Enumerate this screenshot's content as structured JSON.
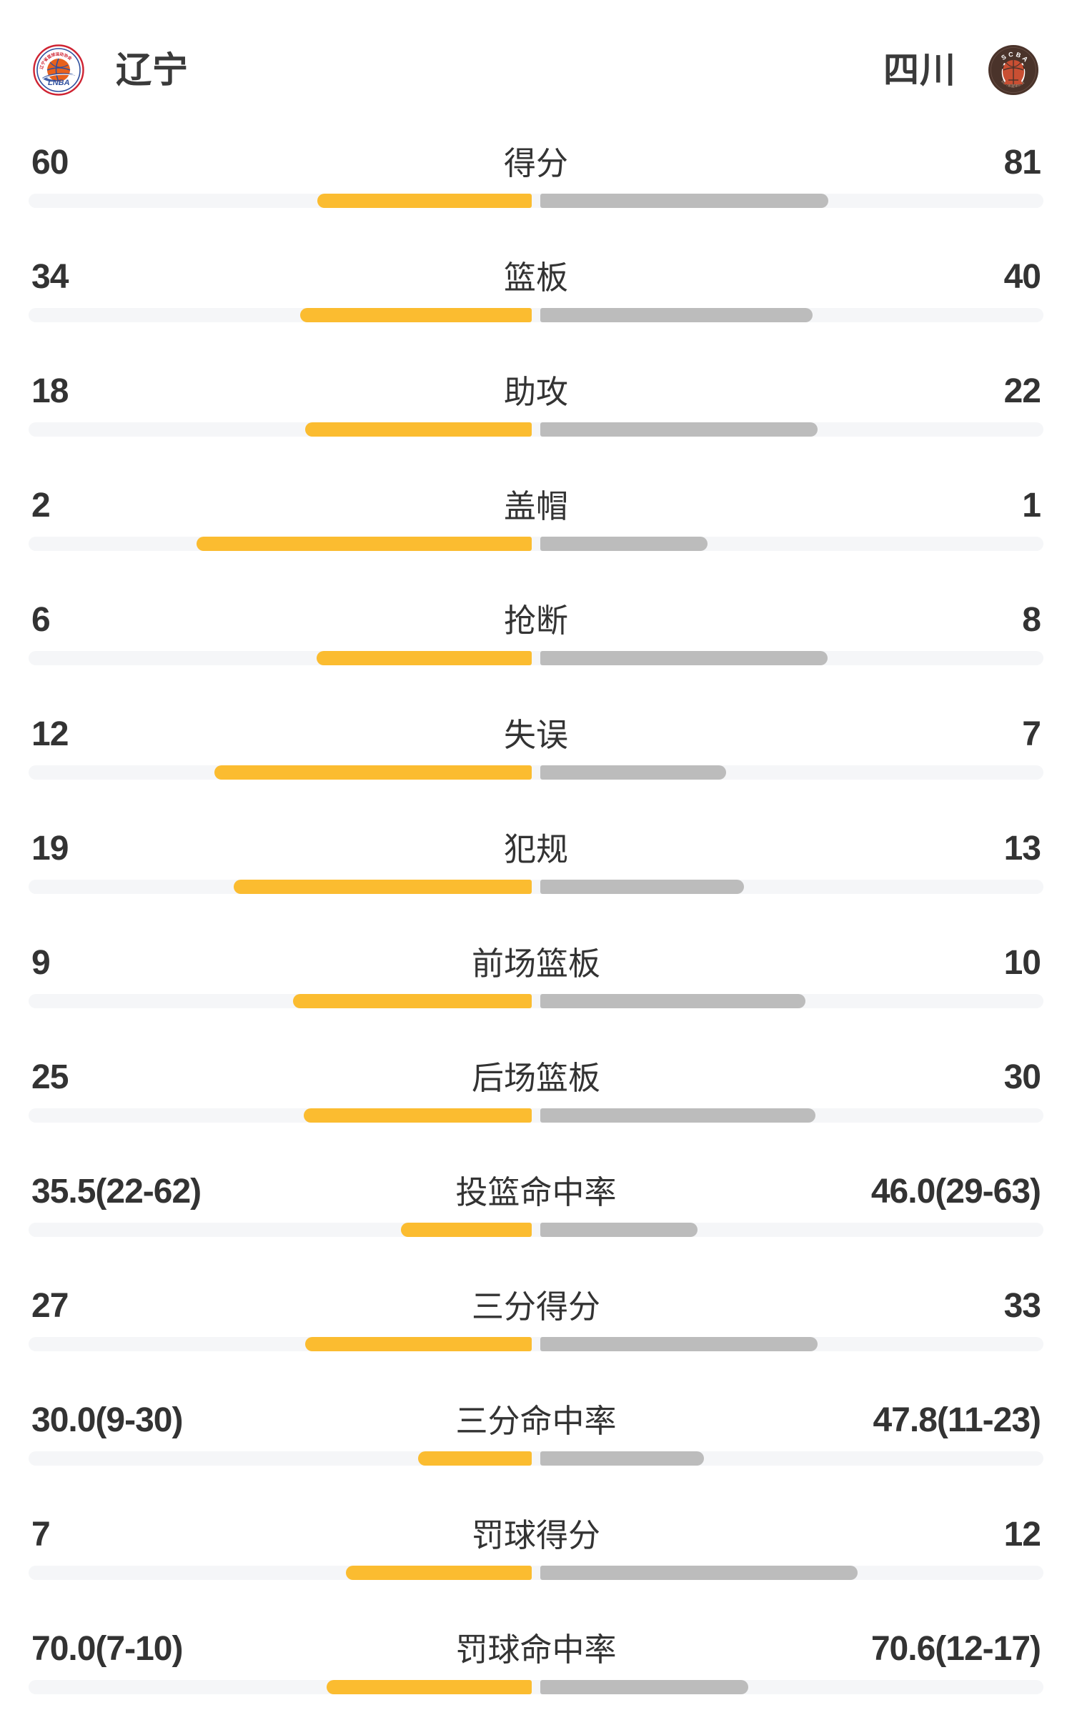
{
  "header": {
    "home": {
      "name": "辽宁",
      "logo_icon": "lnba-team-badge",
      "logo_text": "LNBA",
      "logo_arc_text": "辽宁省篮球运动协会"
    },
    "away": {
      "name": "四川",
      "logo_icon": "scba-team-badge",
      "logo_text": "SCBA",
      "logo_arc_text": "四川省篮球协会"
    }
  },
  "colors": {
    "home_bar": "#fbbc30",
    "away_bar": "#bcbcbc",
    "bar_track": "#f5f6f8",
    "text_primary": "#333333",
    "background": "#ffffff",
    "lnba_red": "#cf2332",
    "lnba_blue": "#2e4f9e",
    "lnba_orange": "#e8611c",
    "scba_brown": "#4a332a",
    "scba_red": "#c94f33"
  },
  "chart_data": {
    "type": "bar",
    "variant": "paired-horizontal-team-comparison",
    "title": "",
    "teams": [
      "辽宁",
      "四川"
    ],
    "legend_position": "none",
    "grid": false,
    "bar_rule": "home bar grows leftward and away bar grows rightward from a 12px center gap; *_bar_pct is bar length as percent of full track width",
    "rows": [
      {
        "label": "得分",
        "home": "60",
        "away": "81",
        "home_num": 60,
        "away_num": 81,
        "home_bar_pct": 21.1,
        "away_bar_pct": 28.4
      },
      {
        "label": "篮板",
        "home": "34",
        "away": "40",
        "home_num": 34,
        "away_num": 40,
        "home_bar_pct": 22.8,
        "away_bar_pct": 26.8
      },
      {
        "label": "助攻",
        "home": "18",
        "away": "22",
        "home_num": 18,
        "away_num": 22,
        "home_bar_pct": 22.3,
        "away_bar_pct": 27.3
      },
      {
        "label": "盖帽",
        "home": "2",
        "away": "1",
        "home_num": 2,
        "away_num": 1,
        "home_bar_pct": 33.0,
        "away_bar_pct": 16.5
      },
      {
        "label": "抢断",
        "home": "6",
        "away": "8",
        "home_num": 6,
        "away_num": 8,
        "home_bar_pct": 21.2,
        "away_bar_pct": 28.3
      },
      {
        "label": "失误",
        "home": "12",
        "away": "7",
        "home_num": 12,
        "away_num": 7,
        "home_bar_pct": 31.3,
        "away_bar_pct": 18.3
      },
      {
        "label": "犯规",
        "home": "19",
        "away": "13",
        "home_num": 19,
        "away_num": 13,
        "home_bar_pct": 29.4,
        "away_bar_pct": 20.1
      },
      {
        "label": "前场篮板",
        "home": "9",
        "away": "10",
        "home_num": 9,
        "away_num": 10,
        "home_bar_pct": 23.5,
        "away_bar_pct": 26.1
      },
      {
        "label": "后场篮板",
        "home": "25",
        "away": "30",
        "home_num": 25,
        "away_num": 30,
        "home_bar_pct": 22.5,
        "away_bar_pct": 27.1
      },
      {
        "label": "投篮命中率",
        "home": "35.5(22-62)",
        "away": "46.0(29-63)",
        "home_num": 35.5,
        "away_num": 46.0,
        "home_made": 22,
        "home_att": 62,
        "away_made": 29,
        "away_att": 63,
        "home_bar_pct": 12.9,
        "away_bar_pct": 15.5
      },
      {
        "label": "三分得分",
        "home": "27",
        "away": "33",
        "home_num": 27,
        "away_num": 33,
        "home_bar_pct": 22.3,
        "away_bar_pct": 27.3
      },
      {
        "label": "三分命中率",
        "home": "30.0(9-30)",
        "away": "47.8(11-23)",
        "home_num": 30.0,
        "away_num": 47.8,
        "home_made": 9,
        "home_att": 30,
        "away_made": 11,
        "away_att": 23,
        "home_bar_pct": 11.2,
        "away_bar_pct": 16.1
      },
      {
        "label": "罚球得分",
        "home": "7",
        "away": "12",
        "home_num": 7,
        "away_num": 12,
        "home_bar_pct": 18.3,
        "away_bar_pct": 31.3
      },
      {
        "label": "罚球命中率",
        "home": "70.0(7-10)",
        "away": "70.6(12-17)",
        "home_num": 70.0,
        "away_num": 70.6,
        "home_made": 7,
        "home_att": 10,
        "away_made": 12,
        "away_att": 17,
        "home_bar_pct": 20.2,
        "away_bar_pct": 20.5
      }
    ]
  }
}
